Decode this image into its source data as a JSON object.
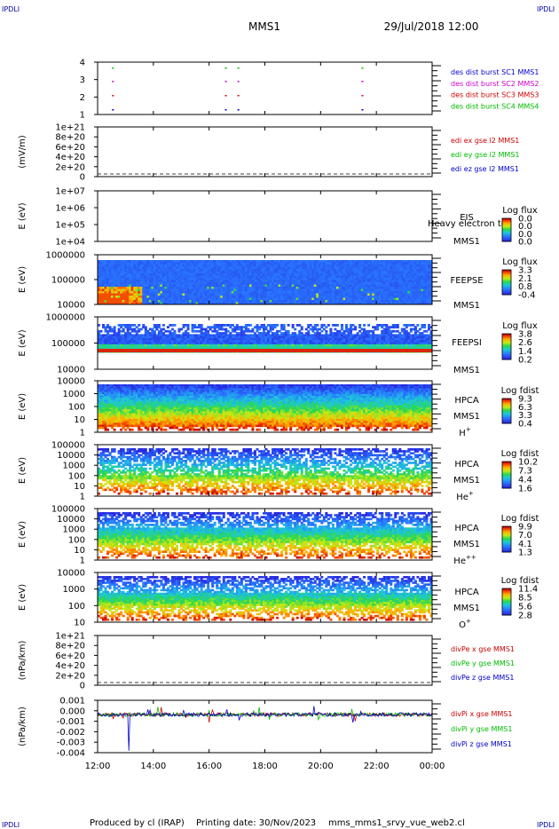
{
  "header": {
    "mission": "MMS1",
    "datetime": "29/Jul/2018 12:00",
    "corner_label": "IPDLI"
  },
  "footer": {
    "produced_by": "Produced by cl (IRAP)",
    "printing_date": "Printing date: 30/Nov/2023",
    "filename": "mms_mms1_srvy_vue_web2.cl"
  },
  "chart_data": [
    {
      "type": "scatter",
      "ylabel": "",
      "yticks": [
        "4",
        "3",
        "2",
        "1"
      ],
      "legend": [
        {
          "text": "des dist burst SC1 MMS1",
          "color": "#0000cc"
        },
        {
          "text": "des dist burst SC2 MMS2",
          "color": "#cc00cc"
        },
        {
          "text": "des dist burst SC3 MMS3",
          "color": "#cc0000"
        },
        {
          "text": "des dist burst SC4 MMS4",
          "color": "#00bb00"
        }
      ],
      "burst_times_hr": [
        12.55,
        16.6,
        17.05,
        21.5
      ]
    },
    {
      "type": "line",
      "ylabel": "(mV/m)",
      "yticks": [
        "1e+21",
        "8e+20",
        "6e+20",
        "4e+20",
        "2e+20",
        "0"
      ],
      "legend": [
        {
          "text": "edi ex gse l2 MMS1",
          "color": "#cc0000"
        },
        {
          "text": "edi ey gse l2 MMS1",
          "color": "#00bb00"
        },
        {
          "text": "edi ez gse l2 MMS1",
          "color": "#0000cc"
        }
      ]
    },
    {
      "type": "heatmap",
      "ylabel": "E (eV)",
      "yticks": [
        "1e+07",
        "1e+06",
        "1e+05",
        "1e+04"
      ],
      "labels": [
        "EIS",
        "MMS1"
      ],
      "overlay_text": "Heavy electron to",
      "colorbar_title": "Log flux",
      "colorbar_ticks": [
        "0.0",
        "0.0",
        "0.0",
        "0.0"
      ]
    },
    {
      "type": "heatmap",
      "ylabel": "E (eV)",
      "yticks": [
        "1000000",
        "100000",
        "10000"
      ],
      "labels": [
        "FEEPSE",
        "MMS1"
      ],
      "colorbar_title": "Log flux",
      "colorbar_ticks": [
        "3.3",
        "2.1",
        "0.8",
        "-0.4"
      ]
    },
    {
      "type": "heatmap",
      "ylabel": "E (eV)",
      "yticks": [
        "1000000",
        "100000",
        "10000"
      ],
      "labels": [
        "FEEPSI",
        "MMS1"
      ],
      "colorbar_title": "Log flux",
      "colorbar_ticks": [
        "3.8",
        "2.6",
        "1.4",
        "0.2"
      ]
    },
    {
      "type": "heatmap",
      "ylabel": "E (eV)",
      "yticks": [
        "10000",
        "1000",
        "100",
        "10",
        "1"
      ],
      "labels": [
        "HPCA",
        "MMS1"
      ],
      "species": "H",
      "species_sup": "+",
      "colorbar_title": "Log fdist",
      "colorbar_ticks": [
        "9.3",
        "6.3",
        "3.3",
        "0.4"
      ]
    },
    {
      "type": "heatmap",
      "ylabel": "E (eV)",
      "yticks": [
        "100000",
        "10000",
        "1000",
        "100",
        "10",
        "1"
      ],
      "labels": [
        "HPCA",
        "MMS1"
      ],
      "species": "He",
      "species_sup": "+",
      "colorbar_title": "Log fdist",
      "colorbar_ticks": [
        "10.2",
        "7.3",
        "4.4",
        "1.6"
      ]
    },
    {
      "type": "heatmap",
      "ylabel": "E (eV)",
      "yticks": [
        "100000",
        "10000",
        "1000",
        "100",
        "10",
        "1"
      ],
      "labels": [
        "HPCA",
        "MMS1"
      ],
      "species": "He",
      "species_sup": "++",
      "colorbar_title": "Log fdist",
      "colorbar_ticks": [
        "9.9",
        "7.0",
        "4.1",
        "1.3"
      ]
    },
    {
      "type": "heatmap",
      "ylabel": "E (eV)",
      "yticks": [
        "10000",
        "1000",
        "100",
        "10"
      ],
      "labels": [
        "HPCA",
        "MMS1"
      ],
      "species": "O",
      "species_sup": "+",
      "colorbar_title": "Log fdist",
      "colorbar_ticks": [
        "11.4",
        "8.5",
        "5.6",
        "2.8"
      ]
    },
    {
      "type": "line",
      "ylabel": "(nPa/km)",
      "yticks": [
        "1e+21",
        "8e+20",
        "6e+20",
        "4e+20",
        "2e+20",
        "0"
      ],
      "legend": [
        {
          "text": "divPe x gse MMS1",
          "color": "#cc0000"
        },
        {
          "text": "divPe y gse MMS1",
          "color": "#00bb00"
        },
        {
          "text": "divPe z gse MMS1",
          "color": "#0000cc"
        }
      ]
    },
    {
      "type": "line",
      "ylabel": "(nPa/km)",
      "yticks": [
        "0.001",
        "0.000",
        "-0.001",
        "-0.002",
        "-0.003",
        "-0.004"
      ],
      "ylim": [
        -0.004,
        0.0015
      ],
      "legend": [
        {
          "text": "divPi x gse MMS1",
          "color": "#cc0000"
        },
        {
          "text": "divPi y gse MMS1",
          "color": "#00bb00"
        },
        {
          "text": "divPi z gse MMS1",
          "color": "#0000cc"
        }
      ]
    }
  ],
  "xaxis": {
    "ticks": [
      "12:00",
      "14:00",
      "16:00",
      "18:00",
      "20:00",
      "22:00",
      "00:00"
    ],
    "range_hr": [
      12,
      24
    ]
  },
  "colors": {
    "ink": "#000000",
    "corner": "#0000aa"
  }
}
